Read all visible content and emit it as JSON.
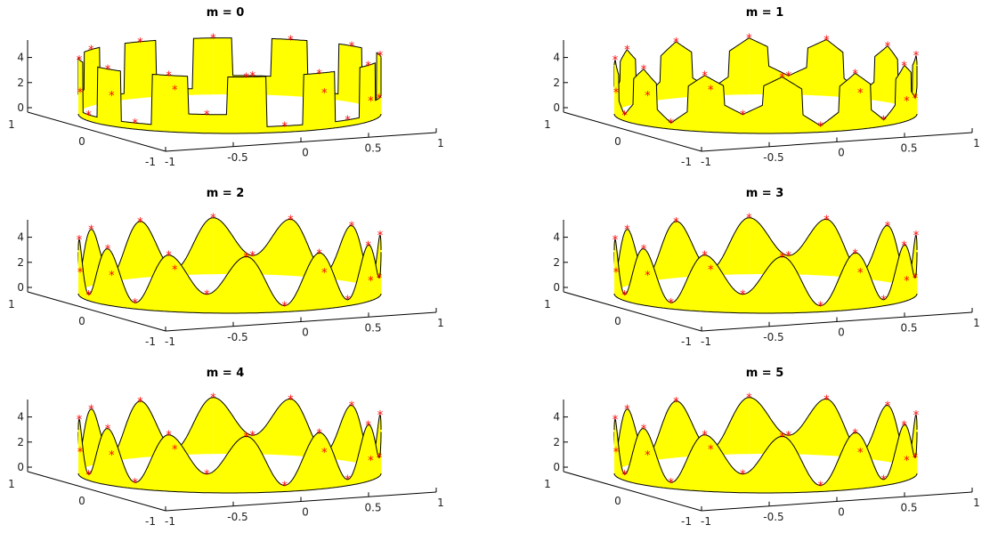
{
  "figure": {
    "background": "#ffffff",
    "fill_color": "#ffff00",
    "edge_color": "#000000",
    "marker_color": "#ff0000",
    "marker": "asterisk"
  },
  "chart_data": [
    {
      "type": "surface-3d",
      "title": "m = 0",
      "smoothing": 0,
      "zticks": [
        "0",
        "2",
        "4"
      ],
      "yticks": [
        "1",
        "0",
        "-1"
      ],
      "xticks": [
        "-1",
        "-0.5",
        "0",
        "0.5",
        "1"
      ],
      "zlim": [
        0,
        5.5
      ],
      "sample_z": [
        4.5,
        1.5,
        4.5,
        0.5,
        4.5,
        0.5,
        4.5,
        1.5,
        4.5,
        0.5,
        4.5,
        0.5,
        4.5,
        1.5,
        4.5,
        0.5,
        4.5,
        0.5,
        4.5,
        1.5,
        4.5,
        0.5,
        4.5,
        0.5
      ],
      "grid": false
    },
    {
      "type": "surface-3d",
      "title": "m = 1",
      "smoothing": 1,
      "zticks": [
        "0",
        "2",
        "4"
      ],
      "yticks": [
        "1",
        "0",
        "-1"
      ],
      "xticks": [
        "-1",
        "-0.5",
        "0",
        "0.5",
        "1"
      ],
      "zlim": [
        0,
        5.5
      ],
      "sample_z": [
        4.5,
        1.5,
        4.5,
        0.5,
        4.5,
        0.5,
        4.5,
        1.5,
        4.5,
        0.5,
        4.5,
        0.5,
        4.5,
        1.5,
        4.5,
        0.5,
        4.5,
        0.5,
        4.5,
        1.5,
        4.5,
        0.5,
        4.5,
        0.5
      ],
      "grid": false
    },
    {
      "type": "surface-3d",
      "title": "m = 2",
      "smoothing": 2,
      "zticks": [
        "0",
        "2",
        "4"
      ],
      "yticks": [
        "1",
        "0",
        "-1"
      ],
      "xticks": [
        "-1",
        "-0.5",
        "0",
        "0.5",
        "1"
      ],
      "zlim": [
        0,
        5.5
      ],
      "sample_z": [
        4.5,
        1.5,
        4.5,
        0.5,
        4.5,
        0.5,
        4.5,
        1.5,
        4.5,
        0.5,
        4.5,
        0.5,
        4.5,
        1.5,
        4.5,
        0.5,
        4.5,
        0.5,
        4.5,
        1.5,
        4.5,
        0.5,
        4.5,
        0.5
      ],
      "grid": false
    },
    {
      "type": "surface-3d",
      "title": "m = 3",
      "smoothing": 3,
      "zticks": [
        "0",
        "2",
        "4"
      ],
      "yticks": [
        "1",
        "0",
        "-1"
      ],
      "xticks": [
        "-1",
        "-0.5",
        "0",
        "0.5",
        "1"
      ],
      "zlim": [
        0,
        5.5
      ],
      "sample_z": [
        4.5,
        1.5,
        4.5,
        0.5,
        4.5,
        0.5,
        4.5,
        1.5,
        4.5,
        0.5,
        4.5,
        0.5,
        4.5,
        1.5,
        4.5,
        0.5,
        4.5,
        0.5,
        4.5,
        1.5,
        4.5,
        0.5,
        4.5,
        0.5
      ],
      "grid": false
    },
    {
      "type": "surface-3d",
      "title": "m = 4",
      "smoothing": 4,
      "zticks": [
        "0",
        "2",
        "4"
      ],
      "yticks": [
        "1",
        "0",
        "-1"
      ],
      "xticks": [
        "-1",
        "-0.5",
        "0",
        "0.5",
        "1"
      ],
      "zlim": [
        0,
        5.5
      ],
      "sample_z": [
        4.5,
        1.5,
        4.5,
        0.5,
        4.5,
        0.5,
        4.5,
        1.5,
        4.5,
        0.5,
        4.5,
        0.5,
        4.5,
        1.5,
        4.5,
        0.5,
        4.5,
        0.5,
        4.5,
        1.5,
        4.5,
        0.5,
        4.5,
        0.5
      ],
      "grid": false
    },
    {
      "type": "surface-3d",
      "title": "m = 5",
      "smoothing": 5,
      "zticks": [
        "0",
        "2",
        "4"
      ],
      "yticks": [
        "1",
        "0",
        "-1"
      ],
      "xticks": [
        "-1",
        "-0.5",
        "0",
        "0.5",
        "1"
      ],
      "zlim": [
        0,
        5.5
      ],
      "sample_z": [
        4.5,
        1.5,
        4.5,
        0.5,
        4.5,
        0.5,
        4.5,
        1.5,
        4.5,
        0.5,
        4.5,
        0.5,
        4.5,
        1.5,
        4.5,
        0.5,
        4.5,
        0.5,
        4.5,
        1.5,
        4.5,
        0.5,
        4.5,
        0.5
      ],
      "grid": false
    }
  ]
}
